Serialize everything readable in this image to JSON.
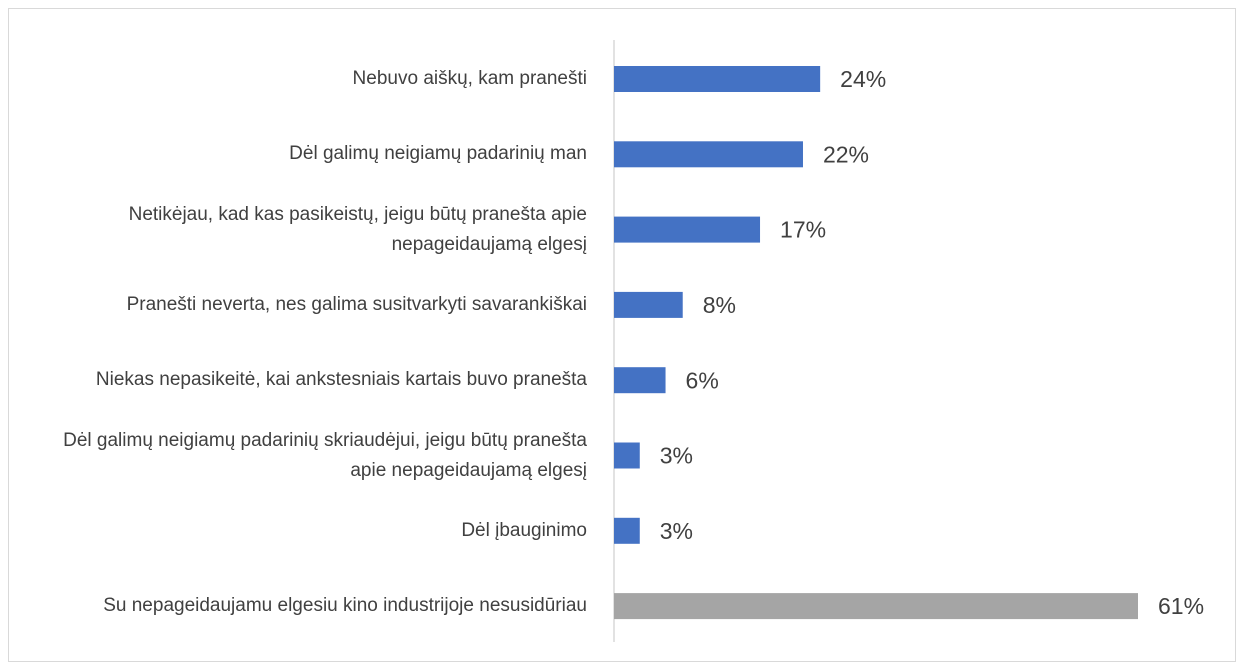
{
  "chart_data": {
    "type": "bar",
    "orientation": "horizontal",
    "categories": [
      "Nebuvo aiškų, kam pranešti",
      "Dėl galimų neigiamų padarinių man",
      "Netikėjau, kad kas pasikeistų, jeigu būtų pranešta apie nepageidaujamą elgesį",
      "Pranešti neverta, nes galima susitvarkyti savarankiškai",
      "Niekas nepasikeitė, kai ankstesniais kartais buvo pranešta",
      "Dėl galimų neigiamų padarinių skriaudėjui, jeigu būtų pranešta apie nepageidaujamą elgesį",
      "Dėl įbauginimo",
      "Su nepageidaujamu elgesiu kino industrijoje nesusidūriau"
    ],
    "values": [
      24,
      22,
      17,
      8,
      6,
      3,
      3,
      61
    ],
    "value_labels": [
      "24%",
      "22%",
      "17%",
      "8%",
      "6%",
      "3%",
      "3%",
      "61%"
    ],
    "colors": [
      "#4472c4",
      "#4472c4",
      "#4472c4",
      "#4472c4",
      "#4472c4",
      "#4472c4",
      "#4472c4",
      "#a5a5a5"
    ]
  }
}
